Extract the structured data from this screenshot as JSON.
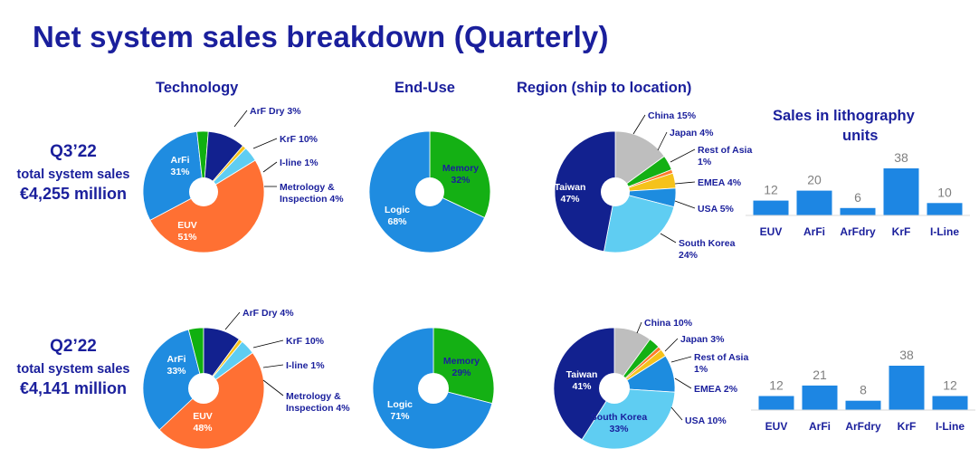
{
  "title": "Net system sales breakdown (Quarterly)",
  "headers": {
    "technology": "Technology",
    "end_use": "End-Use",
    "region": "Region (ship to location)",
    "units_line1": "Sales in lithography",
    "units_line2": "units"
  },
  "periods": [
    {
      "period": "Q3’22",
      "line1": "total system sales",
      "line2": "€4,255 million"
    },
    {
      "period": "Q2’22",
      "line1": "total system sales",
      "line2": "€4,141 million"
    }
  ],
  "colors": {
    "euv": "#ff7033",
    "arfi": "#1f8ce0",
    "arf_dry": "#10b010",
    "krf": "#12218f",
    "iline": "#f5c21b",
    "metrology": "#5fcdf2",
    "china": "#bebebe",
    "japan": "#14b014",
    "rest_asia": "#ff7a2b",
    "emea": "#f5c21b",
    "usa": "#1d8cdf",
    "south_korea": "#5fcdf2",
    "taiwan": "#12218f",
    "memory": "#14b014",
    "logic": "#1f8ce0",
    "bar": "#1d86e3",
    "text": "#1a1f9c",
    "value_text": "#7f7f7f"
  },
  "chart_data": [
    {
      "type": "pie",
      "title": "Technology",
      "period": "Q3’22",
      "slices": [
        {
          "name": "EUV",
          "value": 51,
          "label": [
            "EUV",
            "51%"
          ],
          "color": "#ff7033",
          "inside": true
        },
        {
          "name": "ArFi",
          "value": 31,
          "label": [
            "ArFi",
            "31%"
          ],
          "color": "#1f8ce0",
          "inside": true
        },
        {
          "name": "ArF Dry",
          "value": 3,
          "label": [
            "ArF Dry 3%"
          ],
          "color": "#10b010",
          "inside": false
        },
        {
          "name": "KrF",
          "value": 10,
          "label": [
            "KrF 10%"
          ],
          "color": "#12218f",
          "inside": false
        },
        {
          "name": "I-line",
          "value": 1,
          "label": [
            "I-line 1%"
          ],
          "color": "#f5c21b",
          "inside": false
        },
        {
          "name": "Metrology & Inspection",
          "value": 4,
          "label": [
            "Metrology &",
            "Inspection 4%"
          ],
          "color": "#5fcdf2",
          "inside": false
        }
      ]
    },
    {
      "type": "pie",
      "title": "End-Use",
      "period": "Q3’22",
      "slices": [
        {
          "name": "Memory",
          "value": 32,
          "label": [
            "Memory",
            "32%"
          ],
          "color": "#14b014",
          "inside": true
        },
        {
          "name": "Logic",
          "value": 68,
          "label": [
            "Logic",
            "68%"
          ],
          "color": "#1f8ce0",
          "inside": true
        }
      ]
    },
    {
      "type": "pie",
      "title": "Region (ship to location)",
      "period": "Q3’22",
      "slices": [
        {
          "name": "China",
          "value": 15,
          "label": [
            "China 15%"
          ],
          "color": "#bebebe",
          "inside": false
        },
        {
          "name": "Japan",
          "value": 4,
          "label": [
            "Japan 4%"
          ],
          "color": "#14b014",
          "inside": false
        },
        {
          "name": "Rest of Asia",
          "value": 1,
          "label": [
            "Rest of Asia",
            "1%"
          ],
          "color": "#ff7a2b",
          "inside": false
        },
        {
          "name": "EMEA",
          "value": 4,
          "label": [
            "EMEA 4%"
          ],
          "color": "#f5c21b",
          "inside": false
        },
        {
          "name": "USA",
          "value": 5,
          "label": [
            "USA 5%"
          ],
          "color": "#1d8cdf",
          "inside": false
        },
        {
          "name": "South Korea",
          "value": 24,
          "label": [
            "South Korea",
            "24%"
          ],
          "color": "#5fcdf2",
          "inside": false
        },
        {
          "name": "Taiwan",
          "value": 47,
          "label": [
            "Taiwan",
            "47%"
          ],
          "color": "#12218f",
          "inside": true
        }
      ]
    },
    {
      "type": "bar",
      "title": "Sales in lithography units",
      "period": "Q3’22",
      "categories": [
        "EUV",
        "ArFi",
        "ArFdry",
        "KrF",
        "I-Line"
      ],
      "values": [
        12,
        20,
        6,
        38,
        10
      ]
    },
    {
      "type": "pie",
      "title": "Technology",
      "period": "Q2’22",
      "slices": [
        {
          "name": "EUV",
          "value": 48,
          "label": [
            "EUV",
            "48%"
          ],
          "color": "#ff7033",
          "inside": true
        },
        {
          "name": "ArFi",
          "value": 33,
          "label": [
            "ArFi",
            "33%"
          ],
          "color": "#1f8ce0",
          "inside": true
        },
        {
          "name": "ArF Dry",
          "value": 4,
          "label": [
            "ArF Dry 4%"
          ],
          "color": "#10b010",
          "inside": false
        },
        {
          "name": "KrF",
          "value": 10,
          "label": [
            "KrF 10%"
          ],
          "color": "#12218f",
          "inside": false
        },
        {
          "name": "I-line",
          "value": 1,
          "label": [
            "I-line 1%"
          ],
          "color": "#f5c21b",
          "inside": false
        },
        {
          "name": "Metrology & Inspection",
          "value": 4,
          "label": [
            "Metrology &",
            "Inspection 4%"
          ],
          "color": "#5fcdf2",
          "inside": false
        }
      ]
    },
    {
      "type": "pie",
      "title": "End-Use",
      "period": "Q2’22",
      "slices": [
        {
          "name": "Memory",
          "value": 29,
          "label": [
            "Memory",
            "29%"
          ],
          "color": "#14b014",
          "inside": true
        },
        {
          "name": "Logic",
          "value": 71,
          "label": [
            "Logic",
            "71%"
          ],
          "color": "#1f8ce0",
          "inside": true
        }
      ]
    },
    {
      "type": "pie",
      "title": "Region (ship to location)",
      "period": "Q2’22",
      "slices": [
        {
          "name": "China",
          "value": 10,
          "label": [
            "China 10%"
          ],
          "color": "#bebebe",
          "inside": false
        },
        {
          "name": "Japan",
          "value": 3,
          "label": [
            "Japan 3%"
          ],
          "color": "#14b014",
          "inside": false
        },
        {
          "name": "Rest of Asia",
          "value": 1,
          "label": [
            "Rest of Asia",
            "1%"
          ],
          "color": "#ff7a2b",
          "inside": false
        },
        {
          "name": "EMEA",
          "value": 2,
          "label": [
            "EMEA 2%"
          ],
          "color": "#f5c21b",
          "inside": false
        },
        {
          "name": "USA",
          "value": 10,
          "label": [
            "USA 10%"
          ],
          "color": "#1d8cdf",
          "inside": false
        },
        {
          "name": "South Korea",
          "value": 33,
          "label": [
            "South Korea",
            "33%"
          ],
          "color": "#5fcdf2",
          "inside": true
        },
        {
          "name": "Taiwan",
          "value": 41,
          "label": [
            "Taiwan",
            "41%"
          ],
          "color": "#12218f",
          "inside": true
        }
      ]
    },
    {
      "type": "bar",
      "title": "Sales in lithography units",
      "period": "Q2’22",
      "categories": [
        "EUV",
        "ArFi",
        "ArFdry",
        "KrF",
        "I-Line"
      ],
      "values": [
        12,
        21,
        8,
        38,
        12
      ]
    }
  ]
}
